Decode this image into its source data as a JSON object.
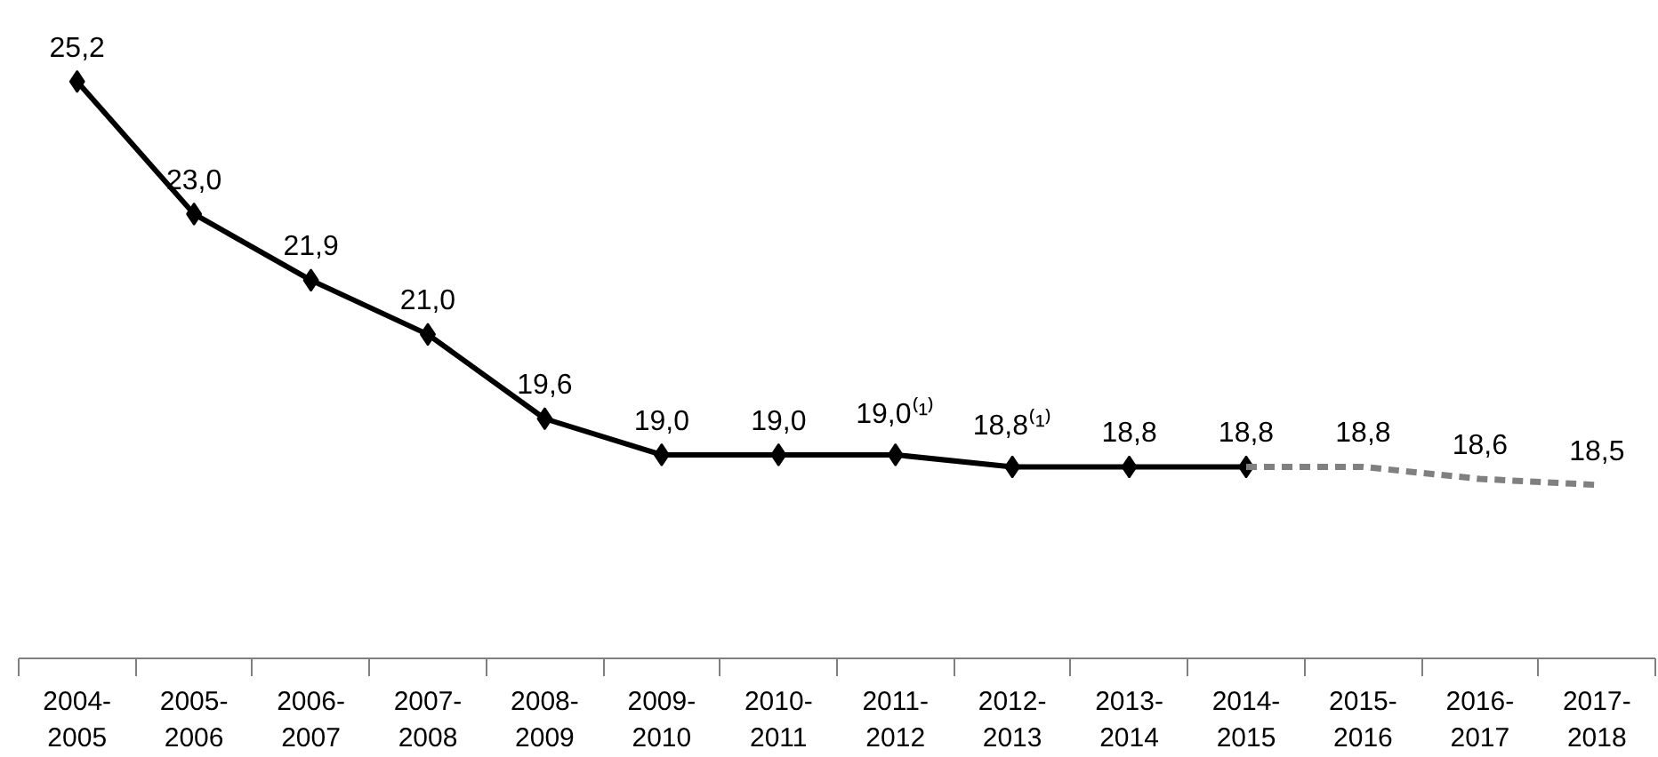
{
  "chart_data": {
    "type": "line",
    "categories": [
      "2004-\n2005",
      "2005-\n2006",
      "2006-\n2007",
      "2007-\n2008",
      "2008-\n2009",
      "2009-\n2010",
      "2010-\n2011",
      "2011-\n2012",
      "2012-\n2013",
      "2013-\n2014",
      "2014-\n2015",
      "2015-\n2016",
      "2016-\n2017",
      "2017-\n2018"
    ],
    "series": [
      {
        "color": "#000000",
        "marker": "diamond",
        "line_style": "solid",
        "values": [
          25.2,
          23.0,
          21.9,
          21.0,
          19.6,
          19.0,
          19.0,
          19.0,
          18.8,
          18.8,
          18.8,
          null,
          null,
          null
        ],
        "value_labels": [
          "25,2",
          "23,0",
          "21,9",
          "21,0",
          "19,6",
          "19,0",
          "19,0",
          "19,0⁽¹⁾",
          "18,8⁽¹⁾",
          "18,8",
          "18,8",
          null,
          null,
          null
        ]
      },
      {
        "color": "#808080",
        "marker": "none",
        "line_style": "dashed",
        "values": [
          null,
          null,
          null,
          null,
          null,
          null,
          null,
          null,
          null,
          null,
          18.8,
          18.8,
          18.6,
          18.5
        ],
        "value_labels": [
          null,
          null,
          null,
          null,
          null,
          null,
          null,
          null,
          null,
          null,
          null,
          "18,8",
          "18,6",
          "18,5"
        ]
      }
    ],
    "tick_labels": "x"
  }
}
